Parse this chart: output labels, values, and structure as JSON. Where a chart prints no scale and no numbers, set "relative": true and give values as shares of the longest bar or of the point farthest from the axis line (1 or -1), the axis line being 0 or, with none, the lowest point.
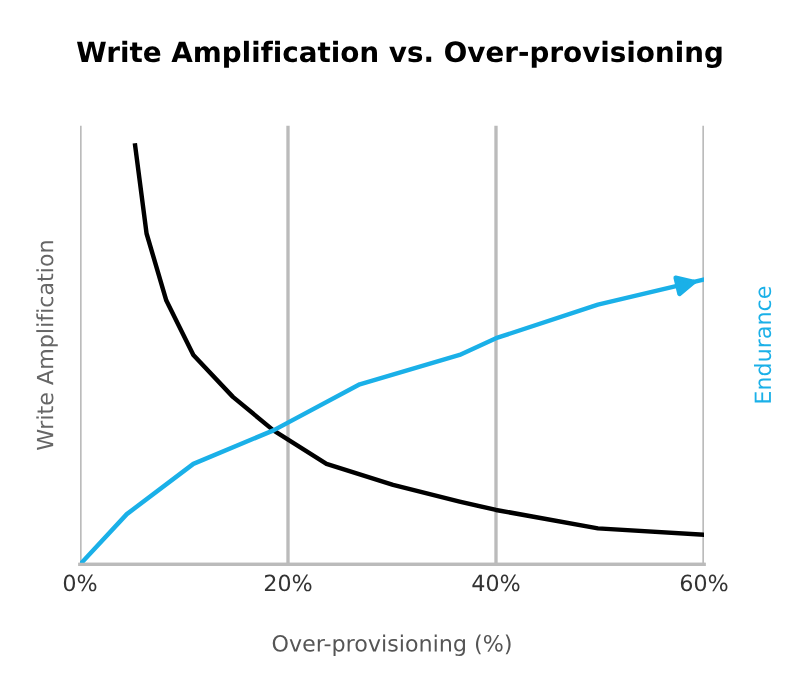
{
  "chart_data": {
    "type": "line",
    "title": "Write Amplification vs. Over-provisioning",
    "xlabel": "Over-provisioning (%)",
    "ylabel": "Write Amplification",
    "y2label": "Endurance",
    "relative": true,
    "xlim": [
      0,
      60
    ],
    "xticks": [
      {
        "value": 0,
        "label": "0%"
      },
      {
        "value": 20,
        "label": "20%"
      },
      {
        "value": 40,
        "label": "40%"
      },
      {
        "value": 60,
        "label": "60%"
      }
    ],
    "grid": "x",
    "legend": false,
    "series": [
      {
        "color": "#000000",
        "x": [
          5.3,
          6.4,
          8.3,
          10.9,
          14.7,
          18.6,
          23.7,
          30.1,
          36.5,
          40,
          49.8,
          60
        ],
        "values": [
          1,
          0.79,
          0.63,
          0.5,
          0.4,
          0.32,
          0.24,
          0.19,
          0.15,
          0.13,
          0.086,
          0.071
        ]
      },
      {
        "color": "#1ab0e8",
        "axis": "y2",
        "x": [
          0,
          4.5,
          10.9,
          18.6,
          26.9,
          36.5,
          40,
          49.8,
          60
        ],
        "values": [
          0,
          0.12,
          0.24,
          0.32,
          0.43,
          0.5,
          0.54,
          0.62,
          0.68
        ]
      }
    ]
  }
}
